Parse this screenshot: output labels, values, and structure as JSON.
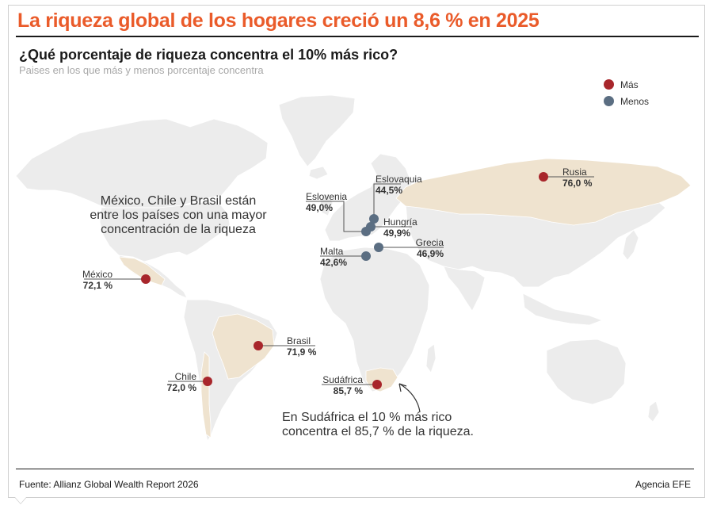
{
  "header": {
    "title": "La riqueza global de los hogares creció un 8,6 % en 2025",
    "subtitle": "¿Qué porcentaje de riqueza concentra el 10% más rico?",
    "description": "Paises en los que más y menos porcentaje concentra"
  },
  "legend": {
    "mas": {
      "label": "Más",
      "color": "#a8262b"
    },
    "menos": {
      "label": "Menos",
      "color": "#5b6e82"
    }
  },
  "colors": {
    "land": "#ececec",
    "highlight": "#efe3cf",
    "leader": "#555555"
  },
  "countries": [
    {
      "id": "mexico",
      "name": "México",
      "value": "72,1 %",
      "group": "mas"
    },
    {
      "id": "chile",
      "name": "Chile",
      "value": "72,0 %",
      "group": "mas"
    },
    {
      "id": "brasil",
      "name": "Brasil",
      "value": "71,9 %",
      "group": "mas"
    },
    {
      "id": "sudafrica",
      "name": "Sudáfrica",
      "value": "85,7 %",
      "group": "mas"
    },
    {
      "id": "rusia",
      "name": "Rusia",
      "value": "76,0 %",
      "group": "mas"
    },
    {
      "id": "eslovaquia",
      "name": "Eslovaquia",
      "value": "44,5%",
      "group": "menos"
    },
    {
      "id": "eslovenia",
      "name": "Eslovenia",
      "value": "49,0%",
      "group": "menos"
    },
    {
      "id": "hungria",
      "name": "Hungría",
      "value": "49,9%",
      "group": "menos"
    },
    {
      "id": "grecia",
      "name": "Grecia",
      "value": "46,9%",
      "group": "menos"
    },
    {
      "id": "malta",
      "name": "Malta",
      "value": "42,6%",
      "group": "menos"
    }
  ],
  "annotations": {
    "latam": [
      "México, Chile y Brasil están",
      "entre los países con una mayor",
      "concentración de la riqueza"
    ],
    "sudafrica": [
      "En Sudáfrica el 10 % más rico",
      "concentra el 85,7 % de la riqueza."
    ]
  },
  "footer": {
    "source": "Fuente: Allianz Global Wealth Report 2026",
    "credit": "Agencia EFE"
  }
}
